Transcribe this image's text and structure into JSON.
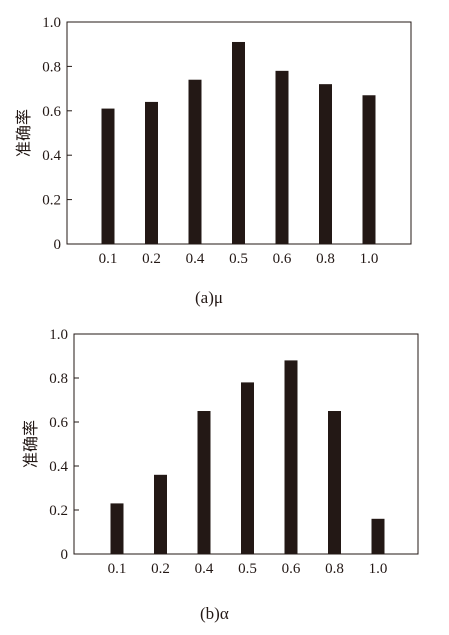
{
  "chart_data": [
    {
      "type": "bar",
      "caption": "(a)μ",
      "ylabel": "准确率",
      "xlabel": "",
      "categories": [
        "0.1",
        "0.2",
        "0.4",
        "0.5",
        "0.6",
        "0.8",
        "1.0"
      ],
      "values": [
        0.61,
        0.64,
        0.74,
        0.91,
        0.78,
        0.72,
        0.67
      ],
      "yticks": [
        "0",
        "0.2",
        "0.4",
        "0.6",
        "0.8",
        "1.0"
      ],
      "ylim": [
        0,
        1.0
      ],
      "bar_color": "#231815"
    },
    {
      "type": "bar",
      "caption": "(b)α",
      "ylabel": "准确率",
      "xlabel": "",
      "categories": [
        "0.1",
        "0.2",
        "0.4",
        "0.5",
        "0.6",
        "0.8",
        "1.0"
      ],
      "values": [
        0.23,
        0.36,
        0.65,
        0.78,
        0.88,
        0.65,
        0.16
      ],
      "yticks": [
        "0",
        "0.2",
        "0.4",
        "0.6",
        "0.8",
        "1.0"
      ],
      "ylim": [
        0,
        1.0
      ],
      "bar_color": "#231815"
    }
  ]
}
